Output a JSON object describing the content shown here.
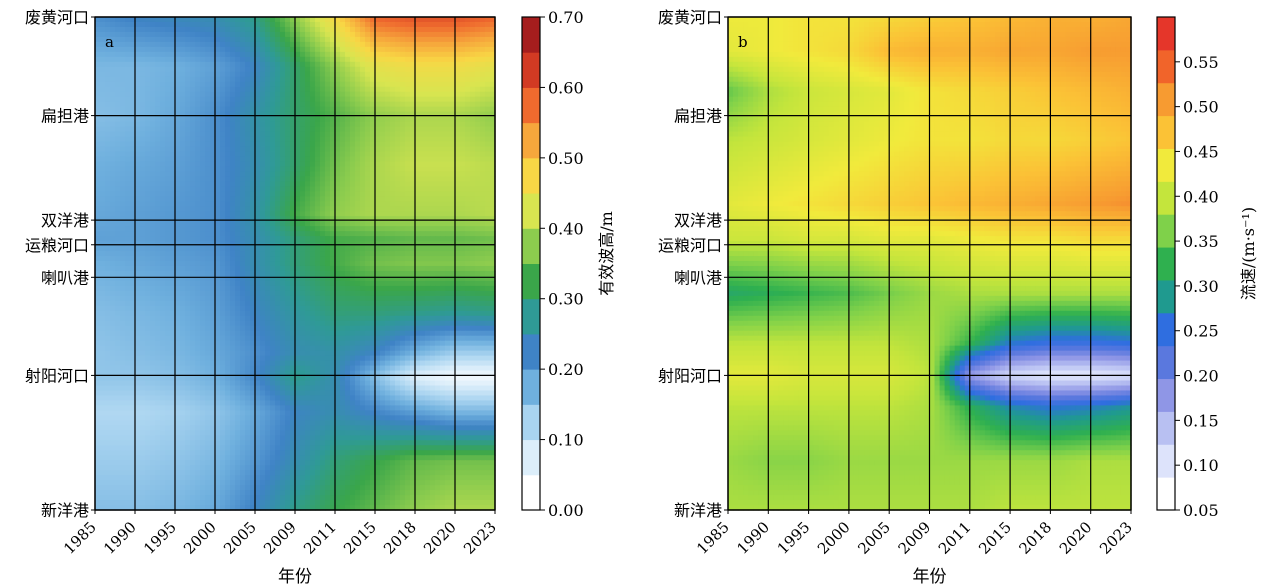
{
  "chart_data": [
    {
      "type": "heatmap",
      "panel_label": "a",
      "xlabel": "年份",
      "x_ticks": [
        "1985",
        "1990",
        "1995",
        "2000",
        "2005",
        "2009",
        "2011",
        "2015",
        "2018",
        "2020",
        "2023"
      ],
      "y_ticks": [
        "废黄河口",
        "扁担港",
        "双洋港",
        "运粮河口",
        "喇叭港",
        "射阳河口",
        "新洋港"
      ],
      "y_tick_pos": [
        1.0,
        0.8,
        0.588,
        0.538,
        0.472,
        0.273,
        0.0
      ],
      "colorbar_label": "有效波高/m",
      "colorbar_ticks": [
        "0.00",
        "0.10",
        "0.20",
        "0.30",
        "0.40",
        "0.50",
        "0.60",
        "0.70"
      ],
      "colorbar_range": [
        0.0,
        0.7
      ],
      "grid": true,
      "colors": [
        "#ffffff",
        "#dceefa",
        "#a9d4f0",
        "#6fb0de",
        "#3f83c6",
        "#2f9a96",
        "#3aa64a",
        "#8ccc4e",
        "#d8e550",
        "#f8d745",
        "#f6a73c",
        "#ef6a2e",
        "#d23a23",
        "#a51d1d"
      ],
      "rows": [
        {
          "y": 1.0,
          "values": [
            0.2,
            0.22,
            0.23,
            0.24,
            0.28,
            0.38,
            0.48,
            0.6,
            0.62,
            0.62,
            0.6
          ]
        },
        {
          "y": 0.9,
          "values": [
            0.15,
            0.15,
            0.16,
            0.18,
            0.22,
            0.3,
            0.38,
            0.45,
            0.47,
            0.47,
            0.45
          ]
        },
        {
          "y": 0.8,
          "values": [
            0.14,
            0.15,
            0.17,
            0.2,
            0.25,
            0.3,
            0.34,
            0.38,
            0.4,
            0.4,
            0.38
          ]
        },
        {
          "y": 0.7,
          "values": [
            0.16,
            0.17,
            0.18,
            0.2,
            0.24,
            0.3,
            0.36,
            0.4,
            0.42,
            0.42,
            0.41
          ]
        },
        {
          "y": 0.6,
          "values": [
            0.17,
            0.18,
            0.19,
            0.2,
            0.25,
            0.33,
            0.38,
            0.4,
            0.4,
            0.4,
            0.41
          ]
        },
        {
          "y": 0.55,
          "values": [
            0.18,
            0.18,
            0.19,
            0.2,
            0.24,
            0.29,
            0.33,
            0.34,
            0.35,
            0.35,
            0.36
          ]
        },
        {
          "y": 0.5,
          "values": [
            0.16,
            0.17,
            0.18,
            0.19,
            0.24,
            0.29,
            0.33,
            0.36,
            0.37,
            0.37,
            0.38
          ]
        },
        {
          "y": 0.4,
          "values": [
            0.14,
            0.15,
            0.16,
            0.18,
            0.22,
            0.26,
            0.29,
            0.29,
            0.28,
            0.27,
            0.28
          ]
        },
        {
          "y": 0.32,
          "values": [
            0.13,
            0.14,
            0.15,
            0.17,
            0.2,
            0.24,
            0.25,
            0.22,
            0.16,
            0.12,
            0.12
          ]
        },
        {
          "y": 0.27,
          "values": [
            0.13,
            0.13,
            0.14,
            0.16,
            0.21,
            0.28,
            0.24,
            0.14,
            0.05,
            0.02,
            0.02
          ]
        },
        {
          "y": 0.2,
          "values": [
            0.1,
            0.1,
            0.11,
            0.13,
            0.17,
            0.22,
            0.24,
            0.21,
            0.18,
            0.15,
            0.15
          ]
        },
        {
          "y": 0.1,
          "values": [
            0.12,
            0.12,
            0.13,
            0.15,
            0.19,
            0.24,
            0.29,
            0.32,
            0.35,
            0.36,
            0.36
          ]
        },
        {
          "y": 0.0,
          "values": [
            0.14,
            0.14,
            0.15,
            0.17,
            0.22,
            0.28,
            0.32,
            0.35,
            0.38,
            0.4,
            0.4
          ]
        }
      ]
    },
    {
      "type": "heatmap",
      "panel_label": "b",
      "xlabel": "年份",
      "x_ticks": [
        "1985",
        "1990",
        "1995",
        "2000",
        "2005",
        "2009",
        "2011",
        "2015",
        "2018",
        "2020",
        "2023"
      ],
      "y_ticks": [
        "废黄河口",
        "扁担港",
        "双洋港",
        "运粮河口",
        "喇叭港",
        "射阳河口",
        "新洋港"
      ],
      "y_tick_pos": [
        1.0,
        0.8,
        0.588,
        0.538,
        0.472,
        0.273,
        0.0
      ],
      "colorbar_label": "流速/(m·s⁻¹)",
      "colorbar_ticks": [
        "0.05",
        "0.10",
        "0.15",
        "0.20",
        "0.25",
        "0.30",
        "0.35",
        "0.40",
        "0.45",
        "0.50",
        "0.55"
      ],
      "colorbar_range": [
        0.05,
        0.6
      ],
      "grid": true,
      "colors": [
        "#ffffff",
        "#dde3fb",
        "#b8c0f2",
        "#8f96e6",
        "#5a78de",
        "#2f6ee0",
        "#1f9a8f",
        "#2fb04f",
        "#7fd14a",
        "#c4e53c",
        "#f1ea3c",
        "#fbc236",
        "#f79b31",
        "#f1642a",
        "#e5362a"
      ],
      "rows": [
        {
          "y": 1.0,
          "values": [
            0.44,
            0.44,
            0.45,
            0.45,
            0.46,
            0.47,
            0.48,
            0.49,
            0.5,
            0.5,
            0.51
          ]
        },
        {
          "y": 0.93,
          "values": [
            0.43,
            0.44,
            0.45,
            0.46,
            0.49,
            0.5,
            0.5,
            0.51,
            0.51,
            0.52,
            0.52
          ]
        },
        {
          "y": 0.85,
          "values": [
            0.35,
            0.39,
            0.41,
            0.42,
            0.43,
            0.45,
            0.46,
            0.47,
            0.48,
            0.49,
            0.5
          ]
        },
        {
          "y": 0.75,
          "values": [
            0.4,
            0.41,
            0.42,
            0.43,
            0.44,
            0.45,
            0.45,
            0.46,
            0.46,
            0.47,
            0.48
          ]
        },
        {
          "y": 0.62,
          "values": [
            0.43,
            0.44,
            0.45,
            0.46,
            0.47,
            0.48,
            0.49,
            0.5,
            0.51,
            0.52,
            0.53
          ]
        },
        {
          "y": 0.55,
          "values": [
            0.41,
            0.41,
            0.42,
            0.42,
            0.43,
            0.43,
            0.44,
            0.45,
            0.45,
            0.46,
            0.46
          ]
        },
        {
          "y": 0.44,
          "values": [
            0.31,
            0.32,
            0.33,
            0.34,
            0.36,
            0.38,
            0.39,
            0.39,
            0.39,
            0.39,
            0.39
          ]
        },
        {
          "y": 0.34,
          "values": [
            0.4,
            0.4,
            0.4,
            0.4,
            0.4,
            0.39,
            0.33,
            0.26,
            0.24,
            0.24,
            0.25
          ]
        },
        {
          "y": 0.273,
          "values": [
            0.43,
            0.43,
            0.42,
            0.42,
            0.42,
            0.4,
            0.16,
            0.1,
            0.08,
            0.08,
            0.09
          ]
        },
        {
          "y": 0.21,
          "values": [
            0.4,
            0.4,
            0.4,
            0.4,
            0.4,
            0.39,
            0.32,
            0.27,
            0.25,
            0.26,
            0.28
          ]
        },
        {
          "y": 0.1,
          "values": [
            0.38,
            0.37,
            0.37,
            0.38,
            0.38,
            0.38,
            0.38,
            0.38,
            0.38,
            0.39,
            0.39
          ]
        },
        {
          "y": 0.0,
          "values": [
            0.39,
            0.39,
            0.39,
            0.39,
            0.39,
            0.39,
            0.39,
            0.4,
            0.4,
            0.4,
            0.4
          ]
        }
      ]
    }
  ]
}
